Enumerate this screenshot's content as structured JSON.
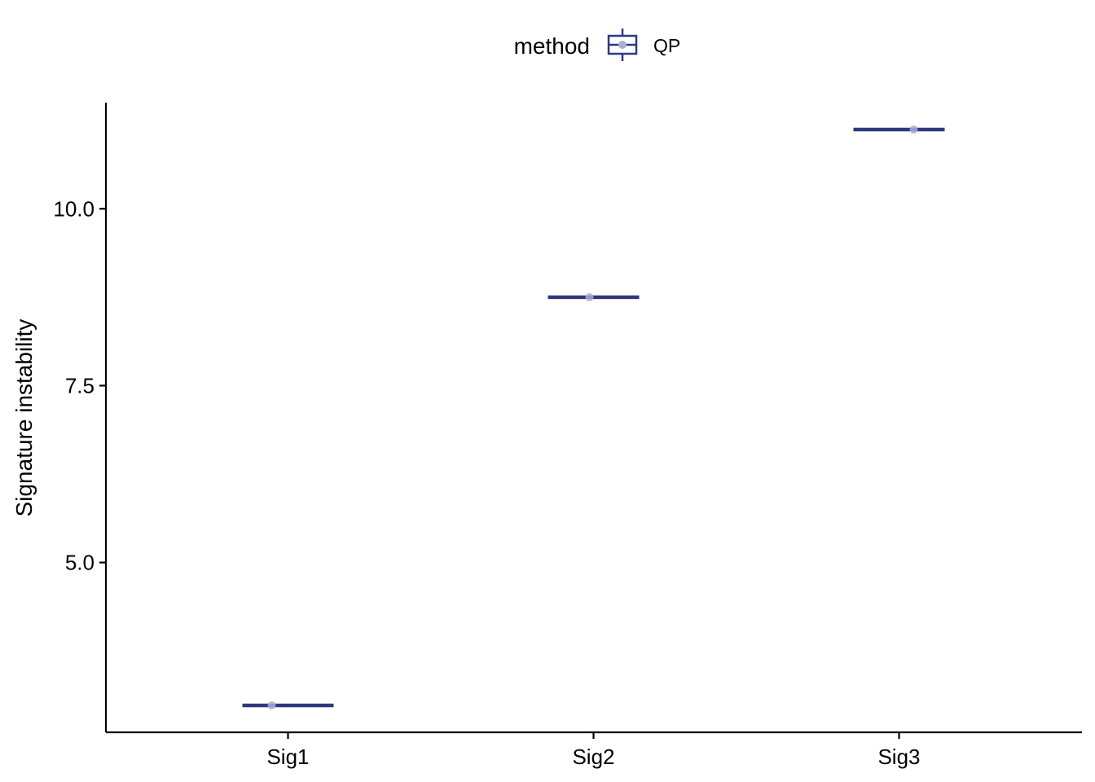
{
  "chart_data": {
    "type": "boxplot",
    "categories": [
      "Sig1",
      "Sig2",
      "Sig3"
    ],
    "series": [
      {
        "name": "QP",
        "values": [
          2.98,
          8.75,
          11.12
        ]
      }
    ],
    "xlabel": "",
    "ylabel": "Signature instability",
    "ylim": [
      2.6,
      11.5
    ],
    "yticks": [
      5.0,
      7.5,
      10.0
    ],
    "ytick_labels": [
      "5.0",
      "7.5",
      "10.0"
    ],
    "legend": {
      "title": "method",
      "entries": [
        "QP"
      ],
      "position": "top"
    },
    "grid": false,
    "colors": {
      "series": "#2e3a7f",
      "point": "#a9aed0"
    }
  }
}
